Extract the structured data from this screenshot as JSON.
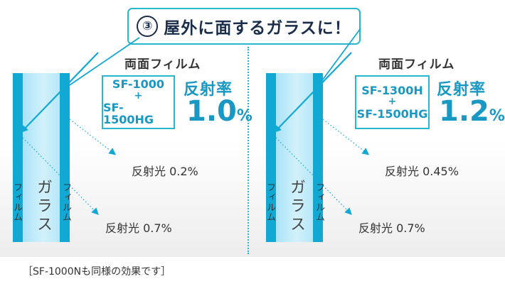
{
  "title": {
    "number": "③",
    "text": "屋外に面するガラスに！"
  },
  "left": {
    "film_label": "両面フィルム",
    "product_line1": "SF-1000",
    "product_plus": "+",
    "product_line2": "SF-1500HG",
    "reflect_label": "反射率",
    "reflect_value": "1.0",
    "reflect_unit": "%",
    "light_top": "反射光 0.2%",
    "light_bottom": "反射光 0.7%",
    "film_left": "フィルム",
    "glass": "ガラス",
    "film_right": "フィルム"
  },
  "right": {
    "film_label": "両面フィルム",
    "product_line1": "SF-1300H",
    "product_plus": "+",
    "product_line2": "SF-1500HG",
    "reflect_label": "反射率",
    "reflect_value": "1.2",
    "reflect_unit": "%",
    "light_top": "反射光 0.45%",
    "light_bottom": "反射光 0.7%",
    "film_left": "フィルム",
    "glass": "ガラス",
    "film_right": "フィルム"
  },
  "footnote": "［SF-1000Nも同様の効果です］",
  "colors": {
    "accent": "#29b6cf",
    "film": "#12a8d4",
    "text_blue": "#1a98c4",
    "navy": "#1a2d4a"
  }
}
